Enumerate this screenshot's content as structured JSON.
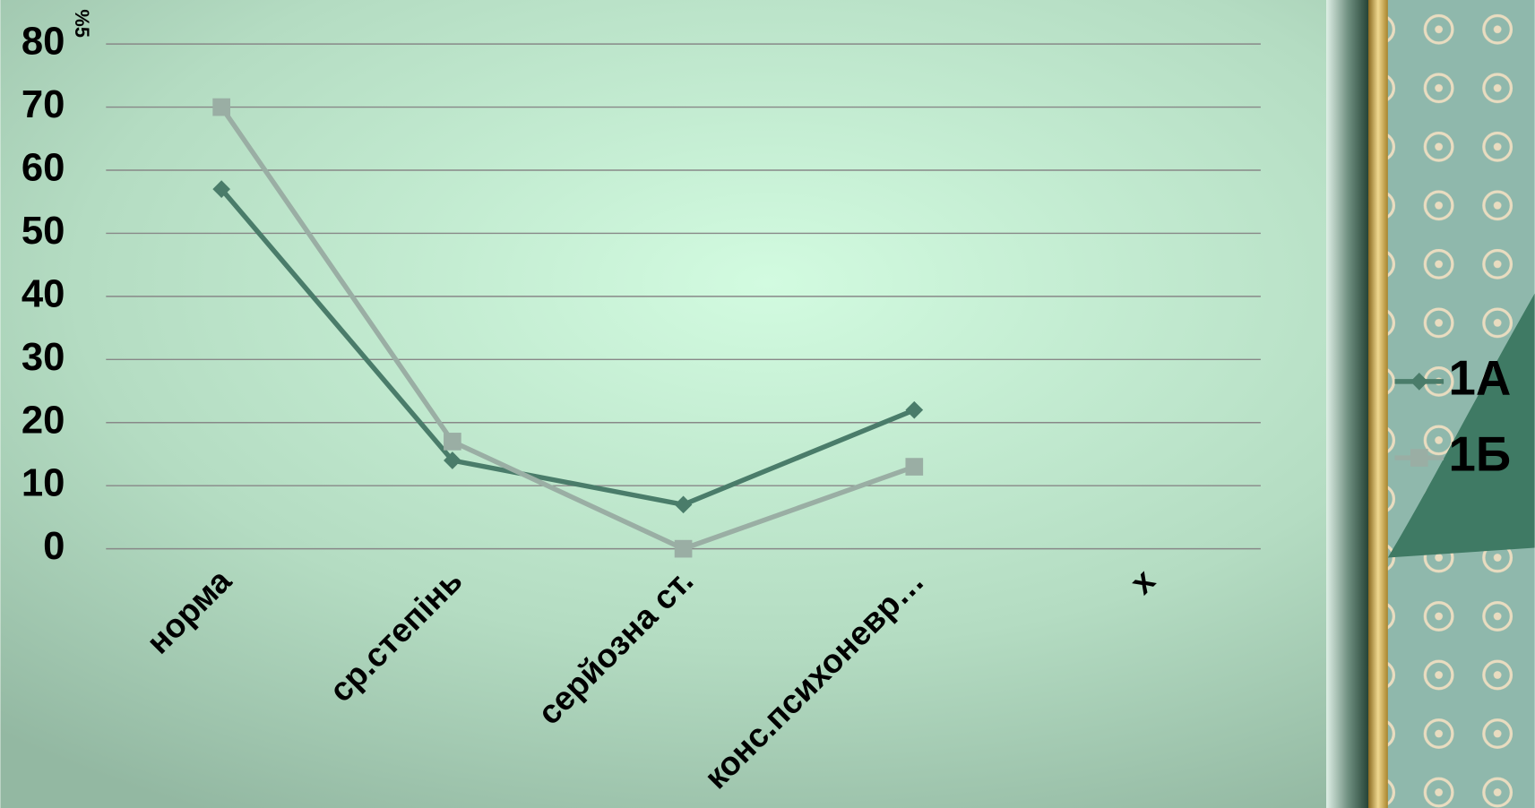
{
  "chart_data": {
    "type": "line",
    "y_label": "%5",
    "categories": [
      "норма",
      "ср.степінь",
      "серйозна ст.",
      "конс.психоневр…",
      "х"
    ],
    "series": [
      {
        "name": "1А",
        "color": "#4a7c6a",
        "marker": "diamond",
        "values": [
          57,
          14,
          7,
          22,
          null
        ]
      },
      {
        "name": "1Б",
        "color": "#9aaea4",
        "marker": "square",
        "values": [
          70,
          17,
          0,
          13,
          null
        ]
      }
    ],
    "ylim": [
      0,
      80
    ],
    "yticks": [
      0,
      10,
      20,
      30,
      40,
      50,
      60,
      70,
      80
    ],
    "grid": true,
    "legend": "right"
  }
}
